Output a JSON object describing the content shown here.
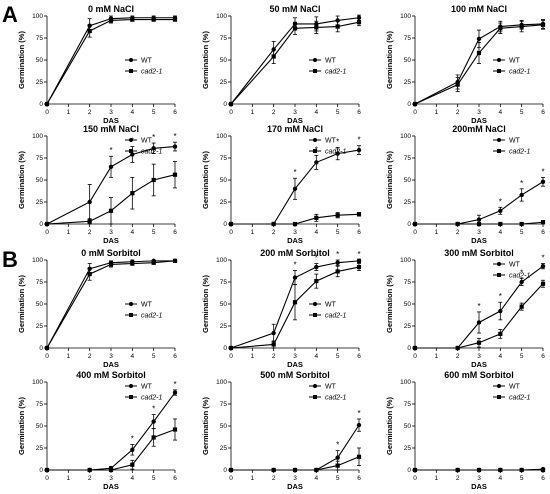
{
  "panel_letters": [
    "A",
    "B"
  ],
  "chart_data": [
    {
      "type": "line",
      "title": "0 mM NaCl",
      "xlabel": "DAS",
      "ylabel": "Germination (%)",
      "xlim": [
        0,
        6
      ],
      "ylim": [
        0,
        100
      ],
      "x_ticks": [
        0,
        1,
        2,
        3,
        4,
        5,
        6
      ],
      "y_ticks": [
        0,
        25,
        50,
        75,
        100
      ],
      "legend": "right-middle",
      "markers": [],
      "series": [
        {
          "name": "WT",
          "x": [
            0,
            2,
            3,
            4,
            5,
            6
          ],
          "values": [
            0,
            89,
            97,
            98,
            98,
            98
          ],
          "errors": [
            0,
            8,
            3,
            2,
            2,
            2
          ]
        },
        {
          "name": "cad2-1",
          "x": [
            0,
            2,
            3,
            4,
            5,
            6
          ],
          "values": [
            0,
            83,
            95,
            96,
            96,
            96
          ],
          "errors": [
            0,
            7,
            3,
            2,
            2,
            2
          ]
        }
      ]
    },
    {
      "type": "line",
      "title": "50 mM NaCl",
      "xlabel": "DAS",
      "ylabel": "Germination (%)",
      "xlim": [
        0,
        6
      ],
      "ylim": [
        0,
        100
      ],
      "x_ticks": [
        0,
        1,
        2,
        3,
        4,
        5,
        6
      ],
      "y_ticks": [
        0,
        25,
        50,
        75,
        100
      ],
      "legend": "right-middle",
      "markers": [],
      "series": [
        {
          "name": "WT",
          "x": [
            0,
            2,
            3,
            4,
            5,
            6
          ],
          "values": [
            0,
            62,
            91,
            91,
            95,
            98
          ],
          "errors": [
            0,
            9,
            7,
            8,
            5,
            3
          ]
        },
        {
          "name": "cad2-1",
          "x": [
            0,
            2,
            3,
            4,
            5,
            6
          ],
          "values": [
            0,
            54,
            86,
            87,
            88,
            93
          ],
          "errors": [
            0,
            8,
            7,
            7,
            6,
            4
          ]
        }
      ]
    },
    {
      "type": "line",
      "title": "100 mM NaCl",
      "xlabel": "DAS",
      "ylabel": "Germination (%)",
      "xlim": [
        0,
        6
      ],
      "ylim": [
        0,
        100
      ],
      "x_ticks": [
        0,
        1,
        2,
        3,
        4,
        5,
        6
      ],
      "y_ticks": [
        0,
        25,
        50,
        75,
        100
      ],
      "legend": "right-middle",
      "markers": [],
      "series": [
        {
          "name": "WT",
          "x": [
            0,
            2,
            3,
            4,
            5,
            6
          ],
          "values": [
            0,
            25,
            74,
            88,
            90,
            91
          ],
          "errors": [
            0,
            8,
            10,
            6,
            5,
            5
          ]
        },
        {
          "name": "cad2-1",
          "x": [
            0,
            2,
            3,
            4,
            5,
            6
          ],
          "values": [
            0,
            22,
            58,
            86,
            88,
            90
          ],
          "errors": [
            0,
            8,
            12,
            6,
            6,
            5
          ]
        }
      ]
    },
    {
      "type": "line",
      "title": "150 mM NaCl",
      "xlabel": "DAS",
      "ylabel": "Germination (%)",
      "xlim": [
        0,
        6
      ],
      "ylim": [
        0,
        100
      ],
      "x_ticks": [
        0,
        1,
        2,
        3,
        4,
        5,
        6
      ],
      "y_ticks": [
        0,
        25,
        50,
        75,
        100
      ],
      "legend": "top-right",
      "markers": [
        "*",
        "*",
        "*",
        "*"
      ],
      "series": [
        {
          "name": "WT",
          "x": [
            0,
            2,
            3,
            4,
            5,
            6
          ],
          "values": [
            0,
            25,
            65,
            79,
            86,
            88
          ],
          "errors": [
            0,
            20,
            12,
            9,
            6,
            5
          ]
        },
        {
          "name": "cad2-1",
          "x": [
            0,
            2,
            3,
            4,
            5,
            6
          ],
          "values": [
            0,
            3,
            15,
            35,
            50,
            56
          ],
          "errors": [
            0,
            3,
            15,
            18,
            18,
            15
          ]
        }
      ]
    },
    {
      "type": "line",
      "title": "170 mM NaCl",
      "xlabel": "DAS",
      "ylabel": "Germination (%)",
      "xlim": [
        0,
        6
      ],
      "ylim": [
        0,
        100
      ],
      "x_ticks": [
        0,
        1,
        2,
        3,
        4,
        5,
        6
      ],
      "y_ticks": [
        0,
        25,
        50,
        75,
        100
      ],
      "legend": "top-right",
      "markers": [
        "*",
        "*",
        "*",
        "*"
      ],
      "series": [
        {
          "name": "WT",
          "x": [
            0,
            2,
            3,
            4,
            5,
            6
          ],
          "values": [
            0,
            0,
            40,
            70,
            80,
            84
          ],
          "errors": [
            0,
            0,
            12,
            8,
            7,
            5
          ]
        },
        {
          "name": "cad2-1",
          "x": [
            0,
            2,
            3,
            4,
            5,
            6
          ],
          "values": [
            0,
            0,
            0,
            7,
            10,
            11
          ],
          "errors": [
            0,
            0,
            0,
            4,
            3,
            2
          ]
        }
      ]
    },
    {
      "type": "line",
      "title": "200mM NaCl",
      "xlabel": "DAS",
      "ylabel": "Germination (%)",
      "xlim": [
        0,
        6
      ],
      "ylim": [
        0,
        100
      ],
      "x_ticks": [
        0,
        1,
        2,
        3,
        4,
        5,
        6
      ],
      "y_ticks": [
        0,
        25,
        50,
        75,
        100
      ],
      "legend": "top-right",
      "markers": [
        "*",
        "*",
        "*"
      ],
      "series": [
        {
          "name": "WT",
          "x": [
            0,
            2,
            3,
            4,
            5,
            6
          ],
          "values": [
            0,
            0,
            5,
            15,
            33,
            48
          ],
          "errors": [
            0,
            0,
            5,
            4,
            7,
            5
          ]
        },
        {
          "name": "cad2-1",
          "x": [
            0,
            2,
            3,
            4,
            5,
            6
          ],
          "values": [
            0,
            0,
            0,
            0,
            0,
            2
          ],
          "errors": [
            0,
            0,
            0,
            0,
            0,
            2
          ]
        }
      ]
    },
    {
      "type": "line",
      "title": "0 mM Sorbitol",
      "xlabel": "DAS",
      "ylabel": "Germination (%)",
      "xlim": [
        0,
        6
      ],
      "ylim": [
        0,
        100
      ],
      "x_ticks": [
        0,
        1,
        2,
        3,
        4,
        5,
        6
      ],
      "y_ticks": [
        0,
        25,
        50,
        75,
        100
      ],
      "legend": "right-middle",
      "markers": [],
      "series": [
        {
          "name": "WT",
          "x": [
            0,
            2,
            3,
            4,
            5,
            6
          ],
          "values": [
            0,
            90,
            97,
            98,
            99,
            99
          ],
          "errors": [
            0,
            6,
            2,
            2,
            1,
            1
          ]
        },
        {
          "name": "cad2-1",
          "x": [
            0,
            2,
            3,
            4,
            5,
            6
          ],
          "values": [
            0,
            84,
            95,
            96,
            97,
            99
          ],
          "errors": [
            0,
            7,
            3,
            2,
            2,
            1
          ]
        }
      ]
    },
    {
      "type": "line",
      "title": "200 mM Sorbitol",
      "xlabel": "DAS",
      "ylabel": "Germination (%)",
      "xlim": [
        0,
        6
      ],
      "ylim": [
        0,
        100
      ],
      "x_ticks": [
        0,
        1,
        2,
        3,
        4,
        5,
        6
      ],
      "y_ticks": [
        0,
        25,
        50,
        75,
        100
      ],
      "legend": "right-middle",
      "markers": [
        "*",
        "*",
        "*",
        "*"
      ],
      "series": [
        {
          "name": "WT",
          "x": [
            0,
            2,
            3,
            4,
            5,
            6
          ],
          "values": [
            0,
            17,
            80,
            92,
            97,
            99
          ],
          "errors": [
            0,
            10,
            8,
            4,
            3,
            2
          ]
        },
        {
          "name": "cad2-1",
          "x": [
            0,
            2,
            3,
            4,
            5,
            6
          ],
          "values": [
            0,
            4,
            52,
            76,
            87,
            92
          ],
          "errors": [
            0,
            4,
            20,
            8,
            6,
            4
          ]
        }
      ]
    },
    {
      "type": "line",
      "title": "300 mM Sorbitol",
      "xlabel": "DAS",
      "ylabel": "Germination (%)",
      "xlim": [
        0,
        6
      ],
      "ylim": [
        0,
        100
      ],
      "x_ticks": [
        0,
        1,
        2,
        3,
        4,
        5,
        6
      ],
      "y_ticks": [
        0,
        25,
        50,
        75,
        100
      ],
      "legend": "top-right",
      "markers": [
        "*",
        "*",
        "*",
        "*"
      ],
      "series": [
        {
          "name": "WT",
          "x": [
            0,
            2,
            3,
            4,
            5,
            6
          ],
          "values": [
            0,
            0,
            29,
            42,
            75,
            93
          ],
          "errors": [
            0,
            0,
            12,
            10,
            4,
            3
          ]
        },
        {
          "name": "cad2-1",
          "x": [
            0,
            2,
            3,
            4,
            5,
            6
          ],
          "values": [
            0,
            0,
            6,
            16,
            47,
            73
          ],
          "errors": [
            0,
            0,
            5,
            5,
            4,
            4
          ]
        }
      ]
    },
    {
      "type": "line",
      "title": "400 mM Sorbitol",
      "xlabel": "DAS",
      "ylabel": "Germination (%)",
      "xlim": [
        0,
        6
      ],
      "ylim": [
        0,
        100
      ],
      "x_ticks": [
        0,
        1,
        2,
        3,
        4,
        5,
        6
      ],
      "y_ticks": [
        0,
        25,
        50,
        75,
        100
      ],
      "legend": "top-right",
      "markers": [
        "*",
        "*",
        "*"
      ],
      "series": [
        {
          "name": "WT",
          "x": [
            0,
            2,
            3,
            4,
            5,
            6
          ],
          "values": [
            0,
            0,
            2,
            23,
            55,
            88
          ],
          "errors": [
            0,
            0,
            2,
            6,
            8,
            3
          ]
        },
        {
          "name": "cad2-1",
          "x": [
            0,
            2,
            3,
            4,
            5,
            6
          ],
          "values": [
            0,
            0,
            0,
            6,
            37,
            46
          ],
          "errors": [
            0,
            0,
            0,
            5,
            10,
            12
          ]
        }
      ]
    },
    {
      "type": "line",
      "title": "500 mM Sorbitol",
      "xlabel": "DAS",
      "ylabel": "Germination (%)",
      "xlim": [
        0,
        6
      ],
      "ylim": [
        0,
        100
      ],
      "x_ticks": [
        0,
        1,
        2,
        3,
        4,
        5,
        6
      ],
      "y_ticks": [
        0,
        25,
        50,
        75,
        100
      ],
      "legend": "top-right",
      "markers": [
        "*",
        "*"
      ],
      "series": [
        {
          "name": "WT",
          "x": [
            0,
            2,
            3,
            4,
            5,
            6
          ],
          "values": [
            0,
            0,
            0,
            0,
            14,
            51
          ],
          "errors": [
            0,
            0,
            0,
            0,
            8,
            7
          ]
        },
        {
          "name": "cad2-1",
          "x": [
            0,
            2,
            3,
            4,
            5,
            6
          ],
          "values": [
            0,
            0,
            0,
            0,
            5,
            15
          ],
          "errors": [
            0,
            0,
            0,
            0,
            5,
            10
          ]
        }
      ]
    },
    {
      "type": "line",
      "title": "600 mM Sorbitol",
      "xlabel": "DAS",
      "ylabel": "Germination (%)",
      "xlim": [
        0,
        6
      ],
      "ylim": [
        0,
        100
      ],
      "x_ticks": [
        0,
        1,
        2,
        3,
        4,
        5,
        6
      ],
      "y_ticks": [
        0,
        25,
        50,
        75,
        100
      ],
      "legend": "top-right",
      "markers": [],
      "series": [
        {
          "name": "WT",
          "x": [
            0,
            2,
            3,
            4,
            5,
            6
          ],
          "values": [
            0,
            0,
            0,
            0,
            0,
            1
          ],
          "errors": [
            0,
            0,
            0,
            0,
            0,
            1
          ]
        },
        {
          "name": "cad2-1",
          "x": [
            0,
            2,
            3,
            4,
            5,
            6
          ],
          "values": [
            0,
            0,
            0,
            0,
            0,
            0
          ],
          "errors": [
            0,
            0,
            0,
            0,
            0,
            0
          ]
        }
      ]
    }
  ]
}
